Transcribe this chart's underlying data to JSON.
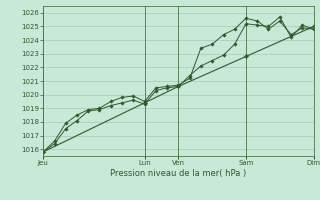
{
  "xlabel": "Pression niveau de la mer( hPa )",
  "bg_color": "#c8e8d8",
  "grid_color": "#a8c8b8",
  "line_color": "#2d5a2d",
  "text_color": "#2d5a2d",
  "spine_color": "#4a7a4a",
  "ylim": [
    1015.5,
    1026.5
  ],
  "yticks": [
    1016,
    1017,
    1018,
    1019,
    1020,
    1021,
    1022,
    1023,
    1024,
    1025,
    1026
  ],
  "day_positions": [
    0.0,
    0.375,
    0.5,
    0.75,
    1.0
  ],
  "day_labels": [
    "Jeu",
    "Lun",
    "Ven",
    "Sam",
    "Dim"
  ],
  "series1_x": [
    0.0,
    0.042,
    0.083,
    0.125,
    0.167,
    0.208,
    0.25,
    0.292,
    0.333,
    0.375,
    0.417,
    0.458,
    0.5,
    0.542,
    0.583,
    0.625,
    0.667,
    0.708,
    0.75,
    0.792,
    0.833,
    0.875,
    0.917,
    0.958,
    1.0
  ],
  "series1_y": [
    1015.8,
    1016.4,
    1017.5,
    1018.1,
    1018.8,
    1018.9,
    1019.2,
    1019.4,
    1019.6,
    1019.3,
    1020.3,
    1020.5,
    1020.6,
    1021.4,
    1022.1,
    1022.5,
    1022.9,
    1023.7,
    1025.2,
    1025.1,
    1025.0,
    1025.7,
    1024.2,
    1025.1,
    1024.8
  ],
  "series2_x": [
    0.0,
    0.042,
    0.083,
    0.125,
    0.167,
    0.208,
    0.25,
    0.292,
    0.333,
    0.375,
    0.417,
    0.458,
    0.5,
    0.542,
    0.583,
    0.625,
    0.667,
    0.708,
    0.75,
    0.792,
    0.833,
    0.875,
    0.917,
    0.958,
    1.0
  ],
  "series2_y": [
    1015.8,
    1016.6,
    1017.9,
    1018.5,
    1018.9,
    1019.0,
    1019.5,
    1019.8,
    1019.9,
    1019.5,
    1020.5,
    1020.6,
    1020.7,
    1021.2,
    1023.4,
    1023.7,
    1024.4,
    1024.8,
    1025.6,
    1025.4,
    1024.8,
    1025.4,
    1024.4,
    1024.9,
    1024.8
  ],
  "series3_x": [
    0.0,
    0.375,
    0.5,
    0.75,
    1.0
  ],
  "series3_y": [
    1015.8,
    1019.4,
    1020.6,
    1022.8,
    1025.0
  ]
}
